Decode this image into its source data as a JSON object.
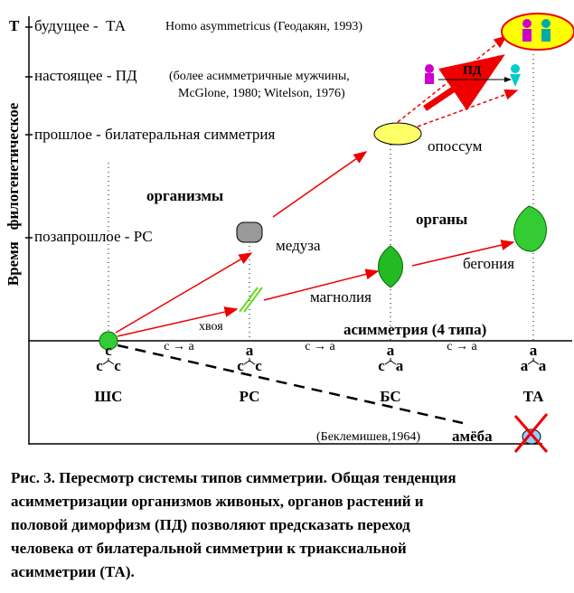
{
  "axis": {
    "t": "Т",
    "y_title": "Время   филогенетическое",
    "x_title": "асимметрия (4 типа)"
  },
  "levels": [
    "будущее -  ТА",
    "настоящее - ПД",
    "прошлое - билатеральная симметрия",
    "позапрошлое - РС"
  ],
  "notes": {
    "future": "Homo asymmetricus (Геодакян, 1993)",
    "present_1": "(более асимметричные мужчины,",
    "present_2": "McGlone, 1980; Witelson, 1976)",
    "pd": "ПД"
  },
  "groups": {
    "organisms": "организмы",
    "organs": "органы"
  },
  "items": {
    "opossum": "опоссум",
    "jellyfish": "медуза",
    "magnolia": "магнолия",
    "begonia": "бегония",
    "needles": "хвоя",
    "ameba_ref": "(Беклемишев,1964)",
    "ameba": "амёба"
  },
  "transitions": [
    "c → a",
    "c → a",
    "c → a"
  ],
  "symmetry_types": [
    {
      "name": "ШС",
      "top": "c",
      "left": "c",
      "right": "c"
    },
    {
      "name": "РС",
      "top": "a",
      "left": "c",
      "right": "c"
    },
    {
      "name": "БС",
      "top": "a",
      "left": "c",
      "right": "a"
    },
    {
      "name": "ТА",
      "top": "a",
      "left": "a",
      "right": "a"
    }
  ],
  "caption": [
    "Рис. 3. Пересмотр системы типов симметрии. Общая тенденция",
    "асимметризации организмов живоных, органов растений и",
    "половой диморфизм (ПД) позволяют предсказать переход",
    "человека от билатеральной симметрии к триаксиальной",
    "асимметрии (ТА)."
  ]
}
